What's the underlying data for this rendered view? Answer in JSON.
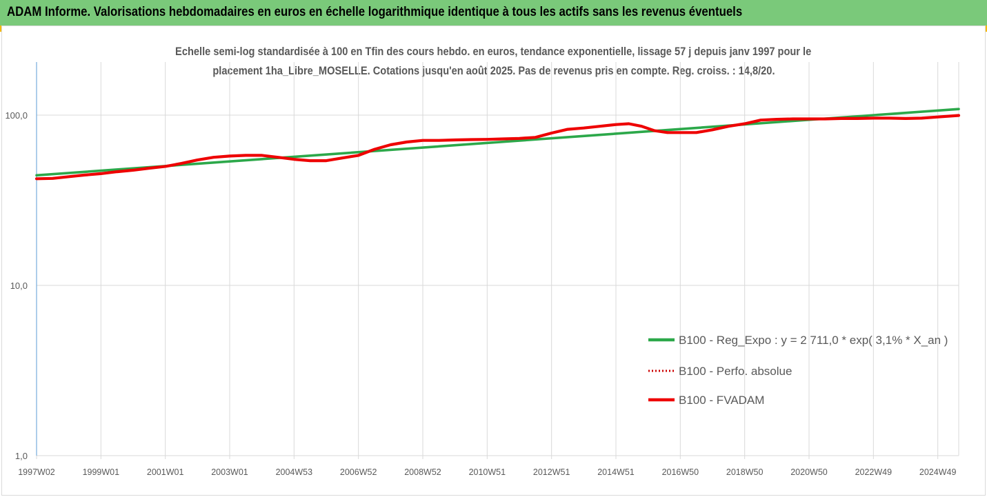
{
  "banner": {
    "title": "ADAM Informe. Valorisations hebdomadaires en euros en échelle logarithmique identique à tous les actifs sans les revenus éventuels"
  },
  "colors": {
    "banner": "#7ac97a",
    "accent_corner": "#f5b800",
    "trend": "#2ca84a",
    "fvadam": "#ee0000",
    "perf": "#cc0000",
    "grid": "#d9d9d9",
    "axis": "#5b9bd5",
    "text": "#595959"
  },
  "chart_data": {
    "type": "line",
    "title_lines": [
      "Echelle semi-log standardisée à 100 en Tfin des cours hebdo. en euros, tendance exponentielle, lissage 57 j depuis janv 1997 pour le",
      "placement 1ha_Libre_MOSELLE. Cotations jusqu'en août 2025. Pas de revenus pris en compte. Reg. croiss. : 14,8/20."
    ],
    "y_scale": "log",
    "ylim": [
      1,
      200
    ],
    "y_ticks": [
      {
        "value": 1,
        "label": "1,0"
      },
      {
        "value": 10,
        "label": "10,0"
      },
      {
        "value": 100,
        "label": "100,0"
      }
    ],
    "xlim": [
      1997.0,
      2025.65
    ],
    "x_ticks": [
      {
        "value": 1997.0,
        "label": "1997W02"
      },
      {
        "value": 1999.0,
        "label": "1999W01"
      },
      {
        "value": 2001.0,
        "label": "2001W01"
      },
      {
        "value": 2003.0,
        "label": "2003W01"
      },
      {
        "value": 2005.0,
        "label": "2004W53"
      },
      {
        "value": 2007.0,
        "label": "2006W52"
      },
      {
        "value": 2009.0,
        "label": "2008W52"
      },
      {
        "value": 2011.0,
        "label": "2010W51"
      },
      {
        "value": 2013.0,
        "label": "2012W51"
      },
      {
        "value": 2015.0,
        "label": "2014W51"
      },
      {
        "value": 2017.0,
        "label": "2016W50"
      },
      {
        "value": 2019.0,
        "label": "2018W50"
      },
      {
        "value": 2021.0,
        "label": "2020W50"
      },
      {
        "value": 2023.0,
        "label": "2022W49"
      },
      {
        "value": 2025.0,
        "label": "2024W49"
      }
    ],
    "grid": true,
    "legend_position": "right",
    "series": [
      {
        "name": "B100 - Reg_Expo : y = 2 711,0 * exp( 3,1% *  X_an )",
        "style": "solid",
        "color": "#2ca84a",
        "x": [
          1997.0,
          2025.65
        ],
        "y": [
          44.3,
          108.5
        ]
      },
      {
        "name": "B100 - Perfo. absolue",
        "style": "dotted",
        "color": "#cc0000",
        "x": [],
        "y": []
      },
      {
        "name": "B100 - FVADAM",
        "style": "solid",
        "color": "#ee0000",
        "x": [
          1997.0,
          1997.5,
          1998.0,
          1998.5,
          1999.0,
          1999.5,
          2000.0,
          2000.5,
          2001.0,
          2001.5,
          2002.0,
          2002.5,
          2003.0,
          2003.5,
          2004.0,
          2004.5,
          2005.0,
          2005.5,
          2006.0,
          2006.5,
          2007.0,
          2007.5,
          2008.0,
          2008.5,
          2009.0,
          2009.5,
          2010.0,
          2010.5,
          2011.0,
          2011.5,
          2012.0,
          2012.5,
          2013.0,
          2013.5,
          2014.0,
          2014.5,
          2015.0,
          2015.4,
          2015.8,
          2016.2,
          2016.6,
          2017.0,
          2017.5,
          2018.0,
          2018.5,
          2019.0,
          2019.5,
          2020.0,
          2020.5,
          2021.0,
          2021.5,
          2022.0,
          2022.5,
          2023.0,
          2023.5,
          2024.0,
          2024.5,
          2025.0,
          2025.65
        ],
        "y": [
          42.3,
          42.5,
          43.5,
          44.5,
          45.3,
          46.5,
          47.5,
          48.8,
          50.0,
          52.0,
          54.5,
          56.5,
          57.5,
          58.0,
          58.0,
          56.5,
          55.0,
          54.0,
          54.0,
          56.0,
          58.0,
          63.0,
          67.0,
          69.5,
          71.0,
          71.0,
          71.5,
          71.8,
          72.0,
          72.5,
          73.0,
          74.0,
          78.5,
          82.5,
          84.0,
          86.0,
          88.0,
          89.0,
          86.0,
          81.0,
          79.0,
          79.0,
          79.0,
          82.0,
          86.0,
          89.0,
          93.5,
          94.5,
          95.0,
          95.0,
          95.0,
          95.5,
          95.5,
          96.0,
          96.0,
          95.5,
          96.0,
          97.5,
          99.5
        ]
      }
    ]
  }
}
